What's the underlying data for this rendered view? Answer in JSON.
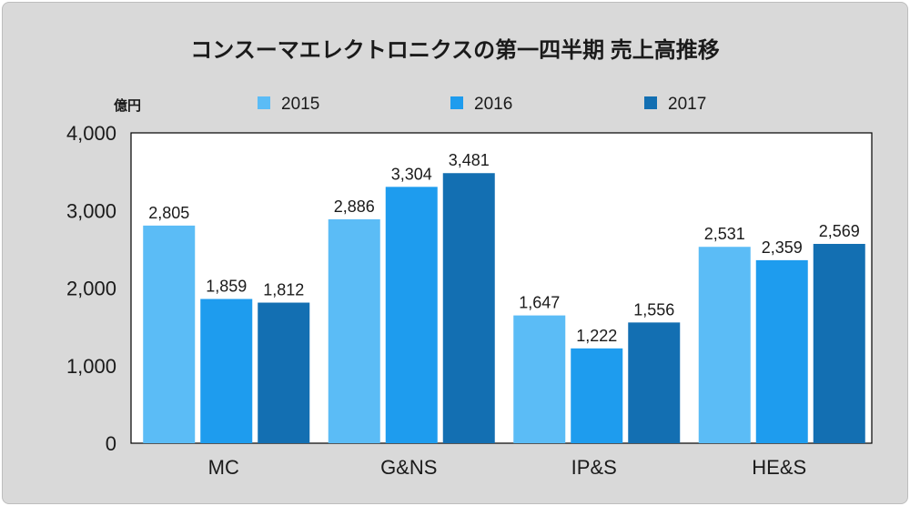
{
  "chart_data": {
    "type": "bar",
    "title": "コンスーマエレクトロニクスの第一四半期 売上高推移",
    "unit_label": "億円",
    "categories": [
      "MC",
      "G&NS",
      "IP&S",
      "HE&S"
    ],
    "series": [
      {
        "name": "2015",
        "color": "#5bbcf6",
        "values": [
          2805,
          2886,
          1647,
          2531
        ]
      },
      {
        "name": "2016",
        "color": "#1e9cee",
        "values": [
          1859,
          3304,
          1222,
          2359
        ]
      },
      {
        "name": "2017",
        "color": "#136fb2",
        "values": [
          1812,
          3481,
          1556,
          2569
        ]
      }
    ],
    "ylim": [
      0,
      4000
    ],
    "yticks": [
      0,
      1000,
      2000,
      3000,
      4000
    ],
    "ytick_labels": [
      "0",
      "1,000",
      "2,000",
      "3,000",
      "4,000"
    ],
    "grid": false,
    "legend_position": "top"
  }
}
